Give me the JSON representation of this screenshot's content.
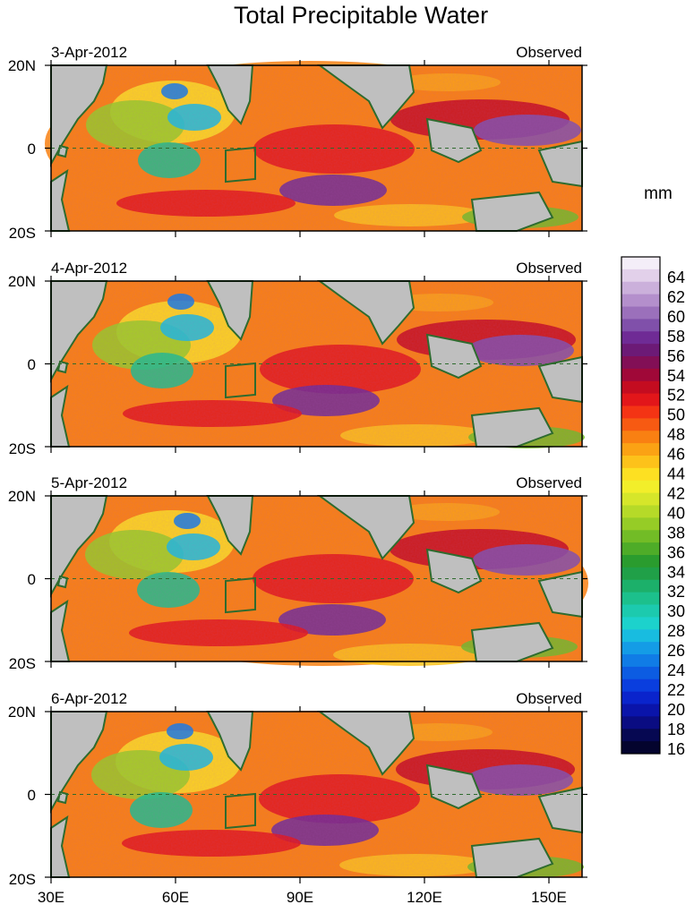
{
  "title": "Total Precipitable Water",
  "units": "mm",
  "y_axis_labels": {
    "north": "20N",
    "equator": "0",
    "south": "20S"
  },
  "x_axis_labels": [
    "30E",
    "60E",
    "90E",
    "120E",
    "150E"
  ],
  "panels": [
    {
      "date": "3-Apr-2012",
      "status": "Observed"
    },
    {
      "date": "4-Apr-2012",
      "status": "Observed"
    },
    {
      "date": "5-Apr-2012",
      "status": "Observed"
    },
    {
      "date": "6-Apr-2012",
      "status": "Observed"
    }
  ],
  "colorbar": {
    "labels": [
      "64",
      "62",
      "60",
      "58",
      "56",
      "54",
      "52",
      "50",
      "48",
      "46",
      "44",
      "42",
      "40",
      "38",
      "36",
      "34",
      "32",
      "30",
      "28",
      "26",
      "24",
      "22",
      "20",
      "18",
      "16"
    ],
    "colors": [
      "#f4eef8",
      "#e2d0ea",
      "#cbb0db",
      "#b48fcc",
      "#9b70bb",
      "#8050aa",
      "#6f2b95",
      "#6c1a76",
      "#820f56",
      "#a00838",
      "#c40c20",
      "#e2161a",
      "#f43414",
      "#f75a12",
      "#f98012",
      "#fba214",
      "#fdc21a",
      "#fde022",
      "#f2ee2a",
      "#d6e62a",
      "#b6da28",
      "#96cc26",
      "#72bc26",
      "#4eac28",
      "#2a9c2e",
      "#20a048",
      "#1cb06a",
      "#1cc08c",
      "#1ccaae",
      "#1cd2cc",
      "#18bce0",
      "#149ce6",
      "#107ce6",
      "#0c5ce2",
      "#0a3ede",
      "#0a24cc",
      "#0a14aa",
      "#0a0c82",
      "#060852",
      "#04042e"
    ]
  },
  "map_colors": {
    "land": "#bfbfbf",
    "coastline": "#2e6b2e",
    "equator_line": "#2e6b2e"
  }
}
